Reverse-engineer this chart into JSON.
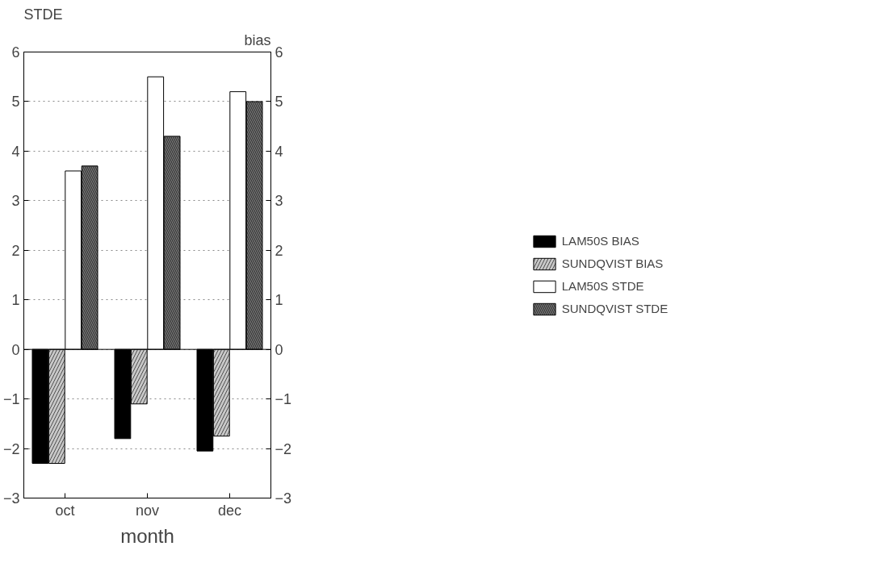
{
  "chart_data": {
    "type": "bar",
    "xlabel": "month",
    "ylabel": "STDE",
    "y2label": "bias",
    "categories": [
      "oct",
      "nov",
      "dec"
    ],
    "series": [
      {
        "name": "LAM50S BIAS",
        "color": "#000000",
        "values": [
          -2.3,
          -1.8,
          -2.05
        ]
      },
      {
        "name": "SUNDQVIST BIAS",
        "color": "#c8c8c8",
        "values": [
          -2.3,
          -1.1,
          -1.75
        ]
      },
      {
        "name": "LAM50S STDE",
        "color": "#ffffff",
        "values": [
          3.6,
          5.5,
          5.2
        ]
      },
      {
        "name": "SUNDQVIST STDE",
        "color": "#808080",
        "values": [
          3.7,
          4.3,
          5.0
        ]
      }
    ],
    "ylim": [
      -3,
      6
    ],
    "yticks": [
      -3,
      -2,
      -1,
      0,
      1,
      2,
      3,
      4,
      5,
      6
    ],
    "y2lim": [
      -3,
      6
    ],
    "y2ticks": [
      -3,
      -2,
      -1,
      0,
      1,
      2,
      3,
      4,
      5,
      6
    ],
    "grid": "y",
    "legend": "right"
  }
}
